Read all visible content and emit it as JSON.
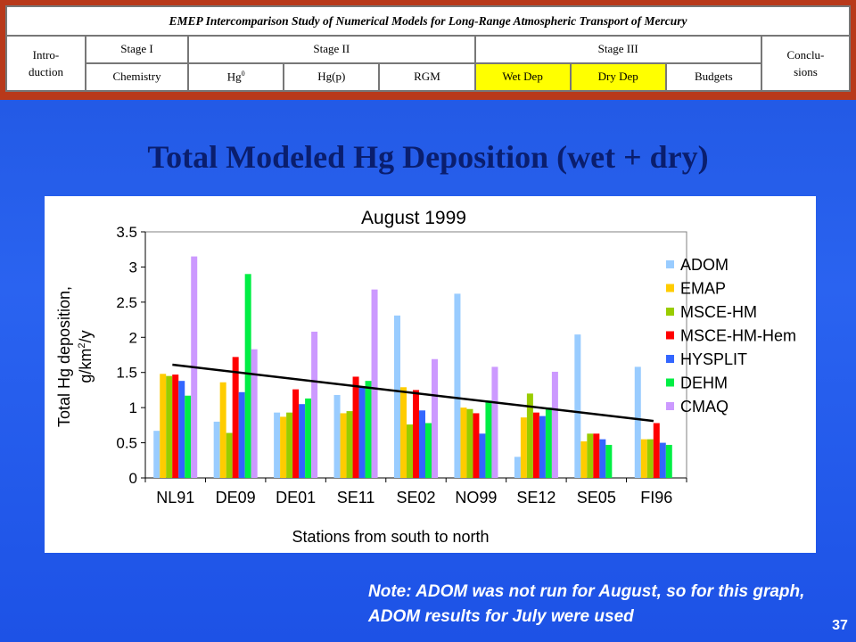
{
  "nav": {
    "title": "EMEP Intercomparison Study of Numerical Models for Long-Range Atmospheric Transport of Mercury",
    "introduction": "Intro-\nduction",
    "stage1": "Stage I",
    "stage2": "Stage II",
    "stage3": "Stage III",
    "conclusions": "Conclu-\nsions",
    "chemistry": "Chemistry",
    "hg0_base": "Hg",
    "hg0_sup": "0",
    "hgp": "Hg(p)",
    "rgm": "RGM",
    "wetdep": "Wet Dep",
    "drydep": "Dry Dep",
    "budgets": "Budgets",
    "highlight_color": "#ffff00"
  },
  "slide_title": "Total Modeled Hg Deposition  (wet + dry)",
  "note": "Note: ADOM was not run for August, so for this graph, ADOM results for July were used",
  "page_number": "37",
  "chart_data": {
    "type": "bar",
    "title": "August 1999",
    "xlabel": "Stations from south to north",
    "ylabel_line1": "Total Hg deposition,",
    "ylabel_line2_prefix": "g/km",
    "ylabel_line2_sup": "2",
    "ylabel_line2_suffix": "/y",
    "ylim": [
      0,
      3.5
    ],
    "yticks": [
      "0",
      "0.5",
      "1",
      "1.5",
      "2",
      "2.5",
      "3",
      "3.5"
    ],
    "grid": false,
    "legend_position": "right",
    "categories": [
      "NL91",
      "DE09",
      "DE01",
      "SE11",
      "SE02",
      "NO99",
      "SE12",
      "SE05",
      "FI96"
    ],
    "series": [
      {
        "name": "ADOM",
        "color": "#99ccff",
        "values": [
          0.67,
          0.8,
          0.93,
          1.18,
          2.31,
          2.62,
          0.3,
          2.04,
          1.58
        ]
      },
      {
        "name": "EMAP",
        "color": "#ffcc00",
        "values": [
          1.48,
          1.36,
          0.87,
          0.92,
          1.29,
          1.0,
          0.86,
          0.52,
          0.55
        ]
      },
      {
        "name": "MSCE-HM",
        "color": "#99cc00",
        "values": [
          1.45,
          0.64,
          0.93,
          0.95,
          0.76,
          0.98,
          1.2,
          0.63,
          0.55
        ]
      },
      {
        "name": "MSCE-HM-Hem",
        "color": "#ff0000",
        "values": [
          1.47,
          1.72,
          1.26,
          1.44,
          1.25,
          0.92,
          0.93,
          0.63,
          0.78
        ]
      },
      {
        "name": "HYSPLIT",
        "color": "#3366ff",
        "values": [
          1.38,
          1.22,
          1.05,
          1.3,
          0.96,
          0.63,
          0.88,
          0.55,
          0.5
        ]
      },
      {
        "name": "DEHM",
        "color": "#00ee44",
        "values": [
          1.17,
          2.9,
          1.13,
          1.38,
          0.78,
          1.1,
          1.0,
          0.47,
          0.47
        ]
      },
      {
        "name": "CMAQ",
        "color": "#cc99ff",
        "values": [
          3.15,
          1.83,
          2.08,
          2.68,
          1.69,
          1.58,
          1.51,
          0.0,
          0.0
        ]
      }
    ],
    "trendline": {
      "from_category": "NL91",
      "to_category": "FI96",
      "start_value": 1.61,
      "end_value": 0.81
    }
  }
}
